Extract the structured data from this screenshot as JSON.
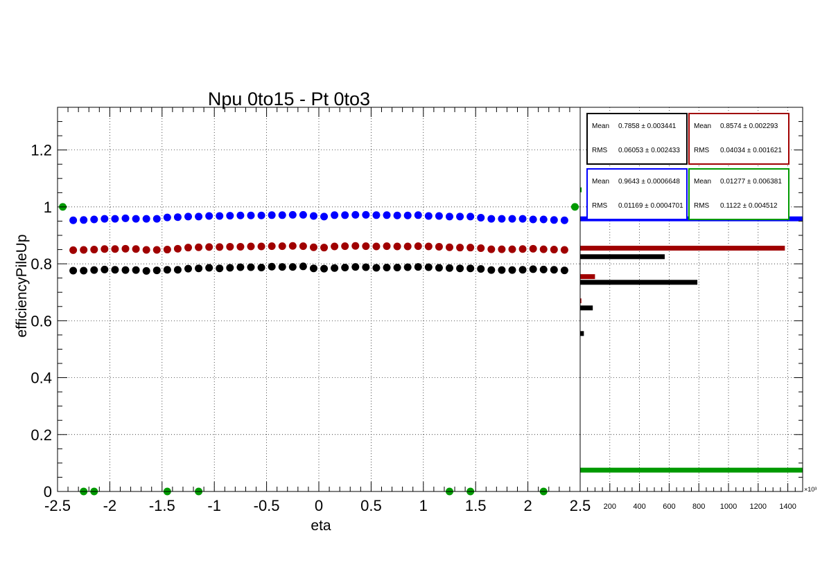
{
  "title": "Npu 0to15 - Pt 0to3",
  "xlabel": "eta",
  "ylabel": "efficiencyPileUp",
  "hist_axis_multiplier": "×10³",
  "colors": {
    "black": "#000000",
    "red": "#a00000",
    "blue": "#0000ff",
    "green": "#009900"
  },
  "stat_boxes": [
    {
      "color": "#000000",
      "mean_label": "Mean",
      "mean": "0.7858 ± 0.003441",
      "rms_label": "RMS",
      "rms": "0.06053 ± 0.002433"
    },
    {
      "color": "#a00000",
      "mean_label": "Mean",
      "mean": "0.8574 ± 0.002293",
      "rms_label": "RMS",
      "rms": "0.04034 ± 0.001621"
    },
    {
      "color": "#0000ff",
      "mean_label": "Mean",
      "mean": "0.9643 ± 0.0006648",
      "rms_label": "RMS",
      "rms": "0.01169 ± 0.0004701"
    },
    {
      "color": "#009900",
      "mean_label": "Mean",
      "mean": "0.01277 ± 0.006381",
      "rms_label": "RMS",
      "rms": "0.1122 ± 0.004512"
    }
  ],
  "chart_data": [
    {
      "type": "scatter",
      "title": "Npu 0to15 - Pt 0to3",
      "xlabel": "eta",
      "ylabel": "efficiencyPileUp",
      "xlim": [
        -2.5,
        2.5
      ],
      "ylim": [
        0,
        1.35
      ],
      "grid": true,
      "x_ticks": [
        "-2.5",
        "-2",
        "-1.5",
        "-1",
        "-0.5",
        "0",
        "0.5",
        "1",
        "1.5",
        "2",
        "2.5"
      ],
      "y_ticks": [
        "0",
        "0.2",
        "0.4",
        "0.6",
        "0.8",
        "1",
        "1.2"
      ],
      "x": [
        -2.35,
        -2.25,
        -2.15,
        -2.05,
        -1.95,
        -1.85,
        -1.75,
        -1.65,
        -1.55,
        -1.45,
        -1.35,
        -1.25,
        -1.15,
        -1.05,
        -0.95,
        -0.85,
        -0.75,
        -0.65,
        -0.55,
        -0.45,
        -0.35,
        -0.25,
        -0.15,
        -0.05,
        0.05,
        0.15,
        0.25,
        0.35,
        0.45,
        0.55,
        0.65,
        0.75,
        0.85,
        0.95,
        1.05,
        1.15,
        1.25,
        1.35,
        1.45,
        1.55,
        1.65,
        1.75,
        1.85,
        1.95,
        2.05,
        2.15,
        2.25,
        2.35
      ],
      "series": [
        {
          "color": "#0000ff",
          "values": [
            0.953,
            0.954,
            0.956,
            0.958,
            0.958,
            0.96,
            0.958,
            0.958,
            0.958,
            0.963,
            0.964,
            0.966,
            0.966,
            0.968,
            0.968,
            0.969,
            0.97,
            0.97,
            0.97,
            0.971,
            0.971,
            0.972,
            0.972,
            0.968,
            0.966,
            0.971,
            0.971,
            0.972,
            0.972,
            0.971,
            0.971,
            0.97,
            0.97,
            0.971,
            0.968,
            0.968,
            0.966,
            0.966,
            0.966,
            0.962,
            0.958,
            0.958,
            0.958,
            0.958,
            0.956,
            0.956,
            0.954,
            0.953
          ]
        },
        {
          "color": "#a00000",
          "values": [
            0.848,
            0.849,
            0.85,
            0.852,
            0.852,
            0.853,
            0.852,
            0.849,
            0.849,
            0.85,
            0.853,
            0.857,
            0.858,
            0.859,
            0.859,
            0.86,
            0.86,
            0.861,
            0.861,
            0.862,
            0.862,
            0.863,
            0.862,
            0.858,
            0.857,
            0.861,
            0.862,
            0.863,
            0.862,
            0.861,
            0.862,
            0.861,
            0.861,
            0.862,
            0.861,
            0.86,
            0.858,
            0.857,
            0.857,
            0.855,
            0.851,
            0.851,
            0.851,
            0.852,
            0.853,
            0.851,
            0.85,
            0.849
          ]
        },
        {
          "color": "#000000",
          "values": [
            0.776,
            0.776,
            0.778,
            0.78,
            0.779,
            0.778,
            0.778,
            0.775,
            0.777,
            0.779,
            0.779,
            0.783,
            0.784,
            0.786,
            0.784,
            0.786,
            0.788,
            0.788,
            0.787,
            0.79,
            0.789,
            0.789,
            0.791,
            0.784,
            0.783,
            0.785,
            0.787,
            0.789,
            0.788,
            0.786,
            0.787,
            0.787,
            0.788,
            0.789,
            0.788,
            0.786,
            0.785,
            0.784,
            0.784,
            0.782,
            0.778,
            0.778,
            0.778,
            0.779,
            0.781,
            0.78,
            0.779,
            0.777
          ]
        },
        {
          "color": "#009900",
          "x": [
            -2.45,
            -2.25,
            -2.15,
            -1.45,
            -1.15,
            1.25,
            1.45,
            2.15,
            2.45
          ],
          "values": [
            1,
            0,
            0,
            0,
            0,
            0,
            0,
            0,
            1
          ]
        }
      ]
    },
    {
      "type": "bar",
      "orientation": "horizontal",
      "xlim": [
        0,
        1500
      ],
      "x_ticks": [
        "0",
        "200",
        "400",
        "600",
        "800",
        "1000",
        "1200",
        "1400"
      ],
      "x_multiplier": "×10³",
      "y_shared_with_main": true,
      "series": [
        {
          "color": "#0000ff",
          "y": [
            0.958
          ],
          "values": [
            1500
          ]
        },
        {
          "color": "#a00000",
          "y": [
            0.855,
            0.755,
            0.67
          ],
          "values": [
            1380,
            100,
            8
          ]
        },
        {
          "color": "#000000",
          "y": [
            0.825,
            0.735,
            0.645,
            0.555
          ],
          "values": [
            570,
            790,
            85,
            25
          ]
        },
        {
          "color": "#009900",
          "y": [
            0.075,
            1.06
          ],
          "values": [
            1500,
            10
          ]
        }
      ]
    }
  ]
}
